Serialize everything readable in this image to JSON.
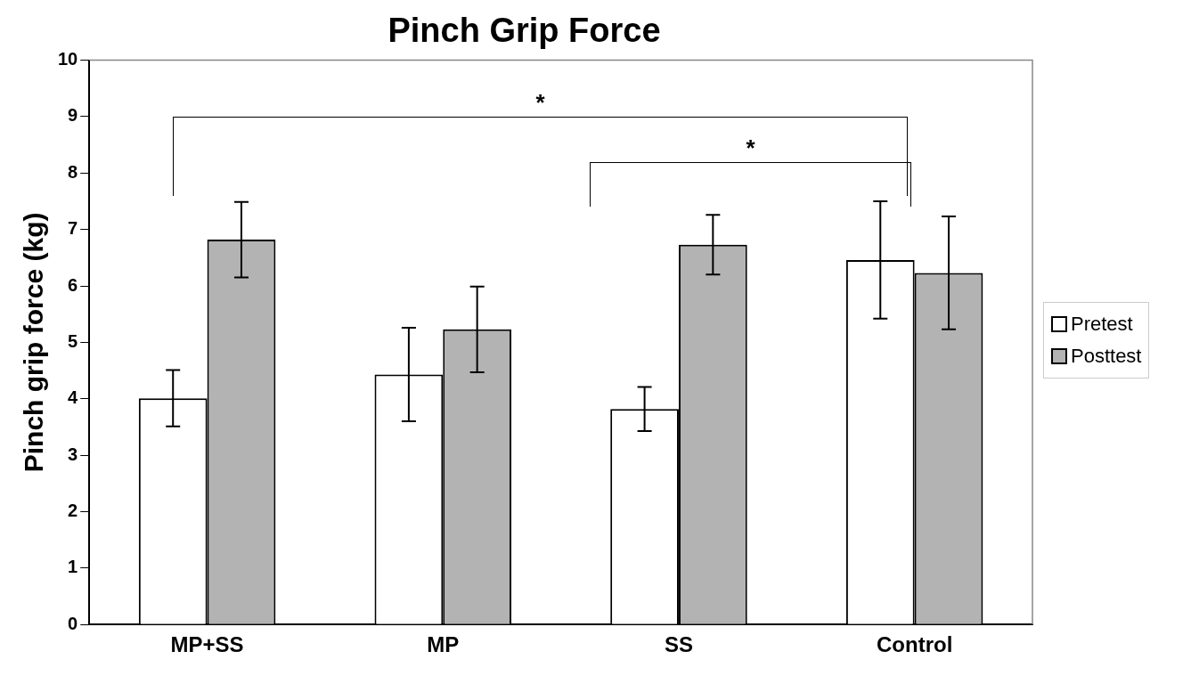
{
  "chart_data": {
    "type": "bar",
    "title": "Pinch Grip Force",
    "ylabel": "Pinch grip force (kg)",
    "categories": [
      "MP+SS",
      "MP",
      "SS",
      "Control"
    ],
    "series": [
      {
        "name": "Pretest",
        "color": "#ffffff",
        "values": [
          4.01,
          4.43,
          3.82,
          6.46
        ],
        "errors": [
          0.5,
          0.83,
          0.39,
          1.04
        ]
      },
      {
        "name": "Posttest",
        "color": "#b3b3b3",
        "values": [
          6.82,
          5.23,
          6.73,
          6.23
        ],
        "errors": [
          0.67,
          0.76,
          0.53,
          1.0
        ]
      }
    ],
    "ylim": [
      0,
      10
    ],
    "yticks": [
      0,
      1,
      2,
      3,
      4,
      5,
      6,
      7,
      8,
      9,
      10
    ],
    "legend": "right",
    "annotations": [
      "*",
      "*"
    ]
  }
}
